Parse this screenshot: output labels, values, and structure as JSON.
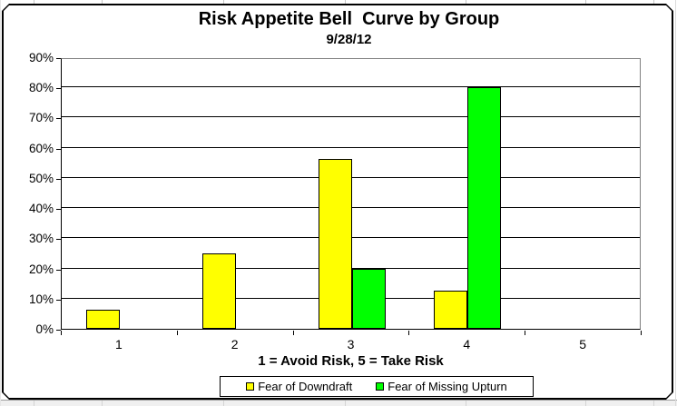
{
  "chart": {
    "title": "Risk Appetite Bell  Curve by Group",
    "subtitle": "9/28/12",
    "x_axis_title": "1 = Avoid Risk, 5 = Take Risk"
  },
  "chart_data": {
    "type": "bar",
    "title": "Risk Appetite Bell  Curve by Group",
    "subtitle": "9/28/12",
    "categories": [
      "1",
      "2",
      "3",
      "4",
      "5"
    ],
    "series": [
      {
        "name": "Fear of Downdraft",
        "color": "#FFFF00",
        "values": [
          6.25,
          25,
          56.25,
          12.5,
          0
        ]
      },
      {
        "name": "Fear of Missing Upturn",
        "color": "#00FF00",
        "values": [
          0,
          0,
          20,
          80,
          0
        ]
      }
    ],
    "xlabel": "1 = Avoid Risk, 5 = Take Risk",
    "ylabel": "",
    "ylim": [
      0,
      90
    ],
    "ytick_step": 10,
    "yticks": [
      "0%",
      "10%",
      "20%",
      "30%",
      "40%",
      "50%",
      "60%",
      "70%",
      "80%",
      "90%"
    ],
    "grid": true,
    "legend_position": "bottom",
    "plot_border_color": "#808080",
    "gridline_color": "#000000"
  }
}
